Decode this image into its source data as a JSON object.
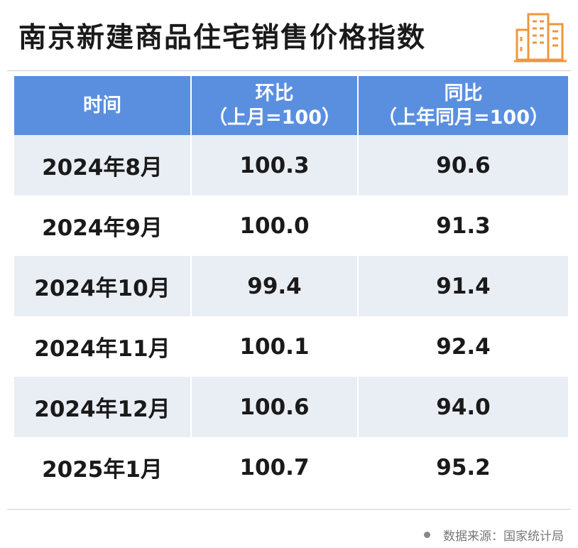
{
  "title": "南京新建商品住宅销售价格指数",
  "table": {
    "header": [
      [
        "时间"
      ],
      [
        "环比",
        "（上月=100）"
      ],
      [
        "同比",
        "（上年同月=100）"
      ]
    ],
    "rows": [
      [
        "2024年8月",
        "100.3",
        "90.6"
      ],
      [
        "2024年9月",
        "100.0",
        "91.3"
      ],
      [
        "2024年10月",
        "99.4",
        "91.4"
      ],
      [
        "2024年11月",
        "100.1",
        "92.4"
      ],
      [
        "2024年12月",
        "100.6",
        "94.0"
      ],
      [
        "2025年1月",
        "100.7",
        "95.2"
      ]
    ]
  },
  "footer": {
    "source": "数据来源：国家统计局"
  }
}
